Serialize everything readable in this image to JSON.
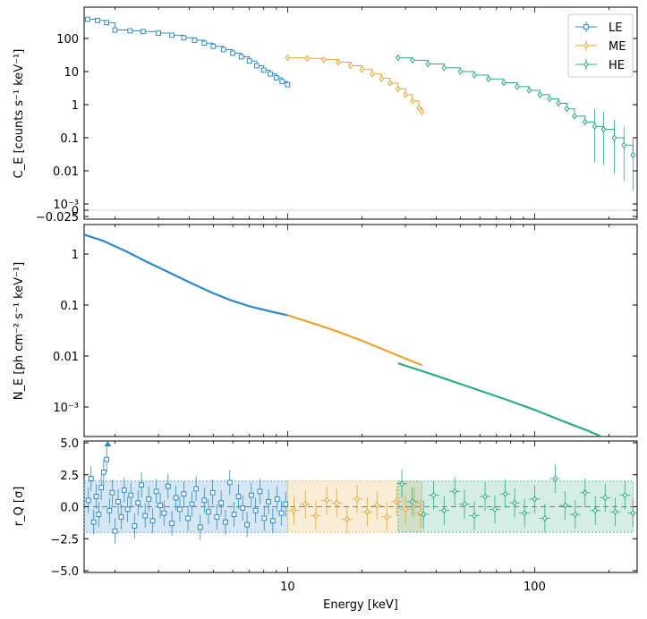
{
  "chart_data": [
    {
      "type": "scatter",
      "panel": "counts",
      "xscale": "log",
      "yscale": "symlog",
      "xlim": [
        1.5,
        260
      ],
      "ylabel": "C_E [counts s⁻¹ keV⁻¹]",
      "ytick_labels": [
        "−0.025",
        "0",
        "10⁻³",
        "0.01",
        "0.1",
        "1",
        "10",
        "100"
      ],
      "legend": {
        "placement": "top-right",
        "entries": [
          "LE",
          "ME",
          "HE"
        ]
      },
      "series": [
        {
          "name": "LE",
          "color": "#2f89c5",
          "marker": "square",
          "x": [
            1.55,
            1.7,
            1.85,
            2.0,
            2.3,
            2.6,
            3.0,
            3.4,
            3.8,
            4.2,
            4.6,
            5.0,
            5.5,
            6.0,
            6.5,
            7.0,
            7.5,
            8.0,
            8.5,
            9.0,
            9.5,
            10.0
          ],
          "y": [
            380,
            350,
            300,
            180,
            170,
            162,
            145,
            125,
            105,
            88,
            72,
            58,
            46,
            36,
            28,
            21,
            15,
            11,
            8.5,
            6.5,
            5.0,
            4.0
          ]
        },
        {
          "name": "ME",
          "color": "#e6a532",
          "marker": "diamond",
          "x": [
            10,
            12,
            14,
            16,
            18,
            20,
            22,
            24,
            26,
            28,
            30,
            32,
            34,
            35
          ],
          "y": [
            26,
            25,
            23,
            19,
            15,
            11.5,
            8.5,
            6.2,
            4.5,
            3.0,
            2.0,
            1.3,
            0.8,
            0.6
          ]
        },
        {
          "name": "HE",
          "color": "#2aab80",
          "marker": "diamond",
          "x": [
            28,
            32,
            37,
            43,
            50,
            57,
            65,
            75,
            85,
            95,
            105,
            115,
            125,
            135,
            145,
            160,
            175,
            190,
            210,
            230,
            250
          ],
          "y": [
            26,
            22,
            17,
            13,
            10,
            7.8,
            6.0,
            4.6,
            3.5,
            2.7,
            2.0,
            1.5,
            1.1,
            0.75,
            0.45,
            0.3,
            0.22,
            0.18,
            0.1,
            0.06,
            0.03
          ]
        }
      ]
    },
    {
      "type": "line",
      "panel": "photon-model",
      "xscale": "log",
      "yscale": "log",
      "xlim": [
        1.5,
        260
      ],
      "ylabel": "N_E [ph cm⁻² s⁻¹ keV⁻¹]",
      "ytick_labels": [
        "10⁻³",
        "0.01",
        "0.1",
        "1"
      ],
      "segments": [
        {
          "name": "LE",
          "color": "#2f89c5",
          "x": [
            1.5,
            1.8,
            2.2,
            2.7,
            3.3,
            4.0,
            5.0,
            6.0,
            7.0,
            8.5,
            10.0
          ],
          "y": [
            2.4,
            1.8,
            1.15,
            0.7,
            0.44,
            0.28,
            0.17,
            0.12,
            0.095,
            0.075,
            0.063
          ]
        },
        {
          "name": "ME",
          "color": "#e6a532",
          "x": [
            10,
            13,
            16,
            20,
            25,
            30,
            35
          ],
          "y": [
            0.063,
            0.042,
            0.03,
            0.02,
            0.0128,
            0.0089,
            0.0066
          ]
        },
        {
          "name": "HE",
          "color": "#2aab80",
          "x": [
            28,
            40,
            60,
            80,
            100,
            130,
            160,
            195
          ],
          "y": [
            0.0072,
            0.0041,
            0.0021,
            0.0013,
            0.00088,
            0.00053,
            0.00036,
            0.00024
          ]
        }
      ]
    },
    {
      "type": "scatter",
      "panel": "residuals",
      "xscale": "log",
      "xlim": [
        1.5,
        260
      ],
      "ylim": [
        -5.0,
        5.0
      ],
      "xlabel": "Energy [keV]",
      "ylabel": "r_Q [σ]",
      "xtick_labels": [
        "10",
        "100"
      ],
      "ytick_labels": [
        "−5.0",
        "−2.5",
        "0.0",
        "2.5",
        "5.0"
      ],
      "bands": [
        {
          "name": "LE",
          "color": "#2f89c5",
          "x": [
            1.5,
            10
          ],
          "y": [
            -2,
            2
          ]
        },
        {
          "name": "ME",
          "color": "#e6a532",
          "x": [
            10,
            35
          ],
          "y": [
            -2,
            2
          ]
        },
        {
          "name": "HE",
          "color": "#2aab80",
          "x": [
            28,
            250
          ],
          "y": [
            -2,
            2
          ]
        }
      ],
      "series": [
        {
          "name": "LE",
          "color": "#2f89c5",
          "marker": "square",
          "x": [
            1.56,
            1.6,
            1.64,
            1.68,
            1.72,
            1.76,
            1.8,
            1.85,
            1.9,
            1.95,
            2.0,
            2.06,
            2.12,
            2.18,
            2.25,
            2.32,
            2.4,
            2.48,
            2.56,
            2.65,
            2.74,
            2.84,
            2.94,
            3.05,
            3.16,
            3.28,
            3.4,
            3.53,
            3.66,
            3.8,
            3.95,
            4.1,
            4.26,
            4.43,
            4.6,
            4.78,
            4.97,
            5.17,
            5.38,
            5.6,
            5.83,
            6.07,
            6.32,
            6.58,
            6.85,
            7.13,
            7.42,
            7.72,
            8.04,
            8.37,
            8.71,
            9.07,
            9.44,
            9.82
          ],
          "y": [
            0.5,
            2.2,
            -1.2,
            0.8,
            -0.6,
            1.5,
            2.7,
            3.7,
            -0.3,
            1.1,
            -1.9,
            0.4,
            -0.8,
            1.3,
            -0.2,
            0.9,
            -1.5,
            0.3,
            1.7,
            -0.7,
            0.6,
            -1.1,
            1.2,
            0.1,
            -0.5,
            1.6,
            -1.3,
            0.7,
            -0.2,
            1.0,
            -0.9,
            0.2,
            1.4,
            -1.6,
            0.5,
            -0.4,
            1.1,
            -0.8,
            0.3,
            -1.2,
            1.9,
            -0.6,
            0.8,
            -0.1,
            -1.4,
            0.9,
            -0.3,
            1.2,
            -0.9,
            0.4,
            -1.1,
            0.6,
            -0.5,
            0.2
          ]
        },
        {
          "name": "ME",
          "color": "#e6a532",
          "marker": "diamond",
          "x": [
            10.6,
            11.8,
            13.0,
            14.4,
            15.8,
            17.4,
            19.1,
            21.0,
            23.0,
            25.2,
            27.6,
            30.0,
            32.6,
            34.5
          ],
          "y": [
            -0.3,
            0.2,
            -0.7,
            0.5,
            0.3,
            -1.0,
            0.6,
            -0.4,
            0.1,
            -0.8,
            0.4,
            -0.2,
            0.3,
            -0.5
          ]
        },
        {
          "name": "HE",
          "color": "#2aab80",
          "marker": "diamond",
          "x": [
            29,
            32,
            35.5,
            39,
            43,
            47.5,
            52,
            57,
            63,
            69,
            76,
            83,
            91,
            100,
            110,
            121,
            133,
            146,
            160,
            176,
            193,
            212,
            232,
            250
          ],
          "y": [
            1.8,
            0.4,
            -0.6,
            0.9,
            -0.3,
            1.2,
            0.2,
            -0.7,
            0.8,
            -0.2,
            1.0,
            0.3,
            -0.5,
            0.6,
            -0.9,
            2.2,
            0.1,
            -0.6,
            1.1,
            -0.3,
            0.7,
            -0.4,
            0.9,
            -0.5
          ]
        }
      ]
    }
  ]
}
